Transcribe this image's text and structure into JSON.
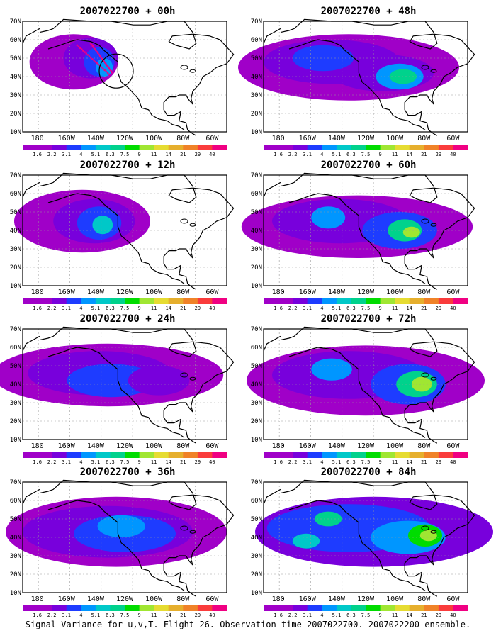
{
  "caption": "Signal Variance for u,v,T. Flight 26. Observation time 2007022700. 2007022200 ensemble.",
  "latitude_labels": [
    "70N",
    "60N",
    "50N",
    "40N",
    "30N",
    "20N",
    "10N"
  ],
  "longitude_labels": [
    "180",
    "160W",
    "140W",
    "120W",
    "100W",
    "80W",
    "60W"
  ],
  "colorbar": {
    "labels": [
      "1.6",
      "2.2",
      "3.1",
      "4",
      "5.1",
      "6.3",
      "7.5",
      "9",
      "11",
      "14",
      "21",
      "29",
      "40"
    ],
    "colors": [
      "#a000c8",
      "#7800dc",
      "#1e3cff",
      "#0096ff",
      "#00c8c8",
      "#00d28c",
      "#00dc00",
      "#a0e632",
      "#e6dc32",
      "#e6af2d",
      "#f08228",
      "#fa3c3c",
      "#f00082"
    ]
  },
  "map_colors": {
    "ocean": "#ffffff",
    "coastline": "#000000",
    "grid": "#999999",
    "obs_marker": "#f00082"
  },
  "panels": [
    {
      "title": "2007022700 + 00h",
      "lead_hours": 0
    },
    {
      "title": "2007022700 + 48h",
      "lead_hours": 48
    },
    {
      "title": "2007022700 + 12h",
      "lead_hours": 12
    },
    {
      "title": "2007022700 + 60h",
      "lead_hours": 60
    },
    {
      "title": "2007022700 + 24h",
      "lead_hours": 24
    },
    {
      "title": "2007022700 + 72h",
      "lead_hours": 72
    },
    {
      "title": "2007022700 + 36h",
      "lead_hours": 36
    },
    {
      "title": "2007022700 + 84h",
      "lead_hours": 84
    }
  ]
}
